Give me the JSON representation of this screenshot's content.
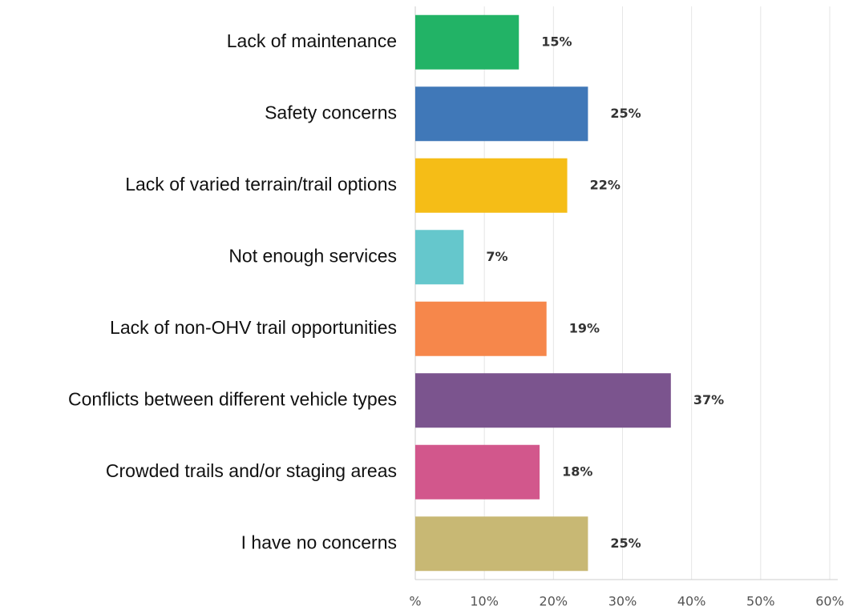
{
  "chart_data": {
    "type": "bar",
    "orientation": "horizontal",
    "categories": [
      "Lack of maintenance",
      "Safety concerns",
      "Lack of varied terrain/trail options",
      "Not enough services",
      "Lack of non-OHV trail opportunities",
      "Conflicts between different vehicle types",
      "Crowded trails and/or staging areas",
      "I have no concerns"
    ],
    "values": [
      15,
      25,
      22,
      7,
      19,
      37,
      18,
      25
    ],
    "value_labels": [
      "15%",
      "25%",
      "22%",
      "7%",
      "19%",
      "37%",
      "18%",
      "25%"
    ],
    "colors": [
      "#22b366",
      "#4078b8",
      "#f5bd17",
      "#65c7cc",
      "#f6874b",
      "#7b548e",
      "#d2578c",
      "#c8b874"
    ],
    "xlim": [
      0,
      60
    ],
    "xticks": [
      {
        "value": 0,
        "label": "%"
      },
      {
        "value": 10,
        "label": "10%"
      },
      {
        "value": 20,
        "label": "20%"
      },
      {
        "value": 30,
        "label": "30%"
      },
      {
        "value": 40,
        "label": "40%"
      },
      {
        "value": 50,
        "label": "50%"
      },
      {
        "value": 60,
        "label": "60%"
      }
    ],
    "grid": true
  }
}
